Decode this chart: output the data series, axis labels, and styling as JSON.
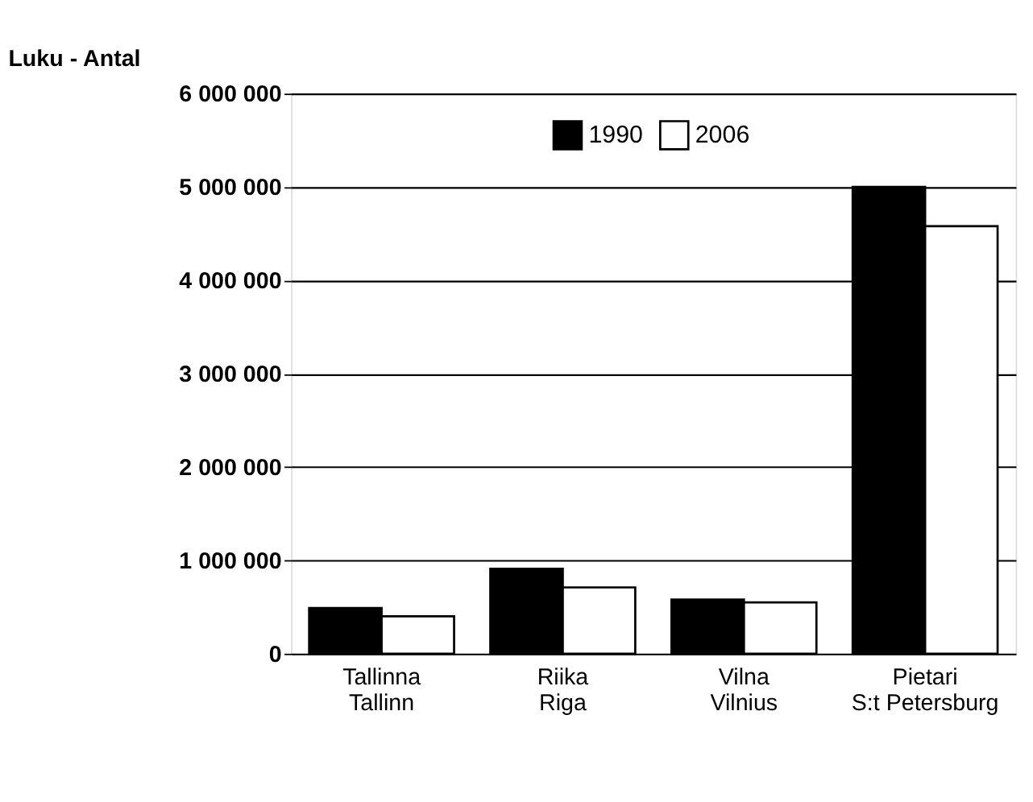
{
  "chart_data": {
    "type": "bar",
    "ylabel": "Luku - Antal",
    "categories": [
      "Tallinna\nTallinn",
      "Riika\nRiga",
      "Vilna\nVilnius",
      "Pietari\nS:t Petersburg"
    ],
    "series": [
      {
        "name": "1990",
        "color": "#000000",
        "values": [
          490000,
          910000,
          580000,
          5000000
        ]
      },
      {
        "name": "2006",
        "color": "#ffffff",
        "values": [
          400000,
          710000,
          550000,
          4580000
        ]
      }
    ],
    "ylim": [
      0,
      6000000
    ],
    "yticks": [
      {
        "value": 0,
        "label": "0"
      },
      {
        "value": 1000000,
        "label": "1 000 000"
      },
      {
        "value": 2000000,
        "label": "2 000 000"
      },
      {
        "value": 3000000,
        "label": "3 000 000"
      },
      {
        "value": 4000000,
        "label": "4 000 000"
      },
      {
        "value": 5000000,
        "label": "5 000 000"
      },
      {
        "value": 6000000,
        "label": "6 000 000"
      }
    ],
    "grid": "y",
    "legend": "top"
  }
}
